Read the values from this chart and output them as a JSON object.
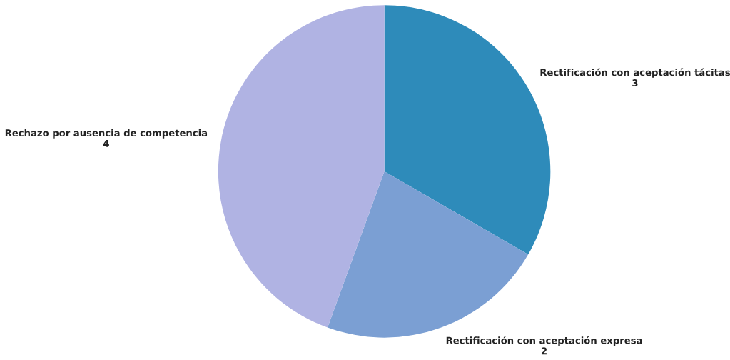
{
  "chart_data": {
    "type": "pie",
    "categories": [
      "Rectificación con aceptación tácitas",
      "Rectificación con aceptación expresa",
      "Rechazo por ausencia de competencia"
    ],
    "values": [
      3,
      2,
      4
    ],
    "colors": [
      "#2e8bba",
      "#7b9fd3",
      "#b0b3e3"
    ],
    "data_labels": true
  }
}
